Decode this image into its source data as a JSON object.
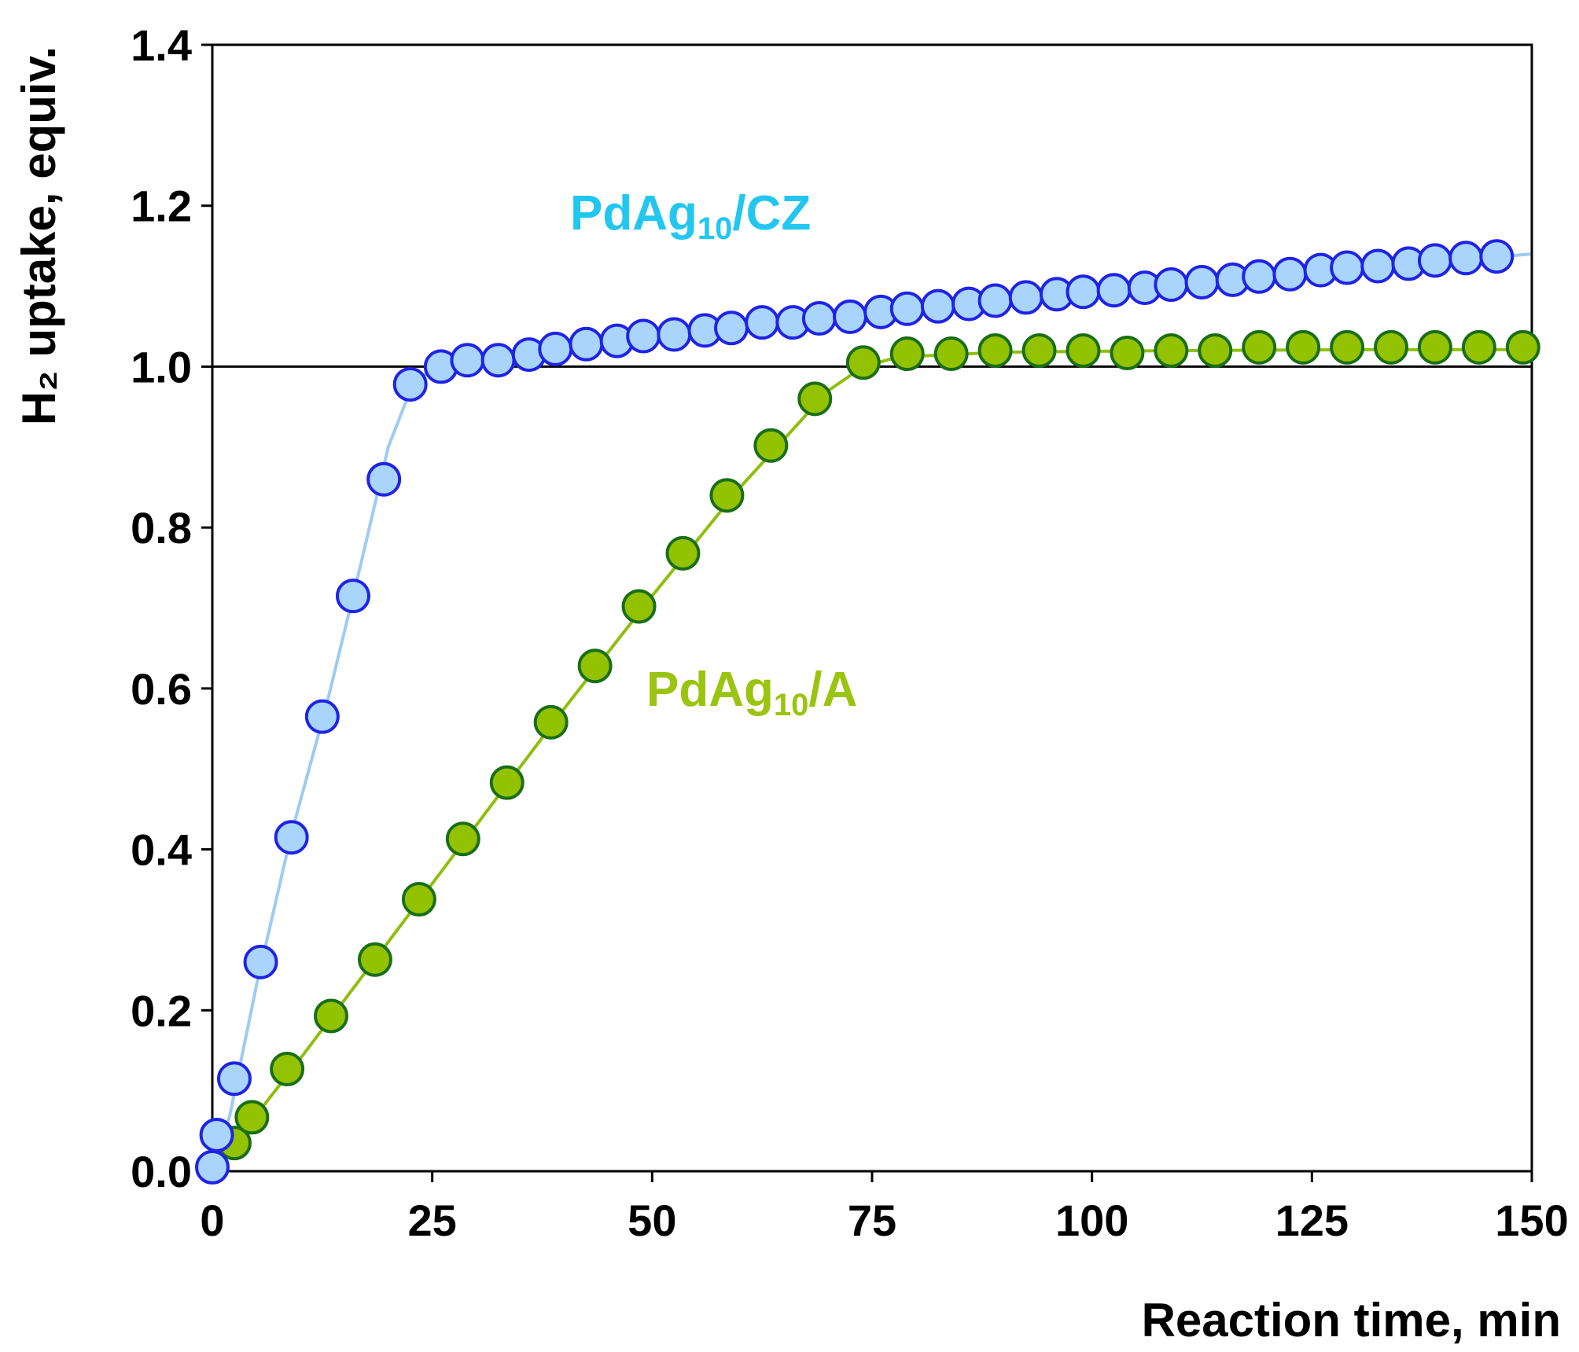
{
  "chart_data": {
    "type": "scatter",
    "title": "",
    "xlabel": "Reaction time, min",
    "ylabel": "H₂ uptake, equiv.",
    "xlim": [
      0,
      150
    ],
    "ylim": [
      0,
      1.4
    ],
    "xticks": [
      0,
      25,
      50,
      75,
      100,
      125,
      150
    ],
    "yticks": [
      0.0,
      0.2,
      0.4,
      0.6,
      0.8,
      1.0,
      1.2,
      1.4
    ],
    "xtick_labels": [
      "0",
      "25",
      "50",
      "75",
      "100",
      "125",
      "150"
    ],
    "ytick_labels": [
      "0.0",
      "0.2",
      "0.4",
      "0.6",
      "0.8",
      "1.0",
      "1.2",
      "1.4"
    ],
    "reference_line": {
      "y": 1.0,
      "color": "#000000"
    },
    "grid": false,
    "series": [
      {
        "name": "PdAg10/CZ",
        "label_main": "PdAg",
        "label_sub": "10",
        "label_tail": "/CZ",
        "label_color": "#22c7f0",
        "marker_fill": "#a9d4fb",
        "marker_edge": "#1f23e6",
        "line_color": "#9ecbf2",
        "x": [
          0,
          0.5,
          2.5,
          5.5,
          9.0,
          12.5,
          16,
          19.5,
          22.5,
          26,
          29,
          32.5,
          36,
          39,
          42.5,
          46,
          49,
          52.5,
          56,
          59,
          62.5,
          66,
          69,
          72.5,
          76,
          79,
          82.5,
          86,
          89,
          92.5,
          96,
          99,
          102.5,
          106,
          109,
          112.5,
          116,
          119,
          122.5,
          126,
          129,
          132.5,
          136,
          139,
          142.5,
          146
        ],
        "y": [
          0.005,
          0.045,
          0.115,
          0.26,
          0.415,
          0.565,
          0.715,
          0.86,
          0.978,
          1.0,
          1.008,
          1.008,
          1.015,
          1.022,
          1.028,
          1.032,
          1.038,
          1.04,
          1.045,
          1.048,
          1.055,
          1.055,
          1.06,
          1.062,
          1.068,
          1.072,
          1.075,
          1.078,
          1.082,
          1.086,
          1.09,
          1.093,
          1.095,
          1.098,
          1.102,
          1.105,
          1.108,
          1.112,
          1.115,
          1.12,
          1.123,
          1.125,
          1.128,
          1.132,
          1.135,
          1.137
        ],
        "fit_x": [
          0,
          2,
          5,
          9,
          13,
          17,
          20,
          22.5,
          25,
          35,
          60,
          90,
          120,
          150
        ],
        "fit_y": [
          0.0,
          0.07,
          0.23,
          0.42,
          0.58,
          0.76,
          0.9,
          0.97,
          1.0,
          1.015,
          1.047,
          1.084,
          1.113,
          1.14
        ]
      },
      {
        "name": "PdAg10/A",
        "label_main": "PdAg",
        "label_sub": "10",
        "label_tail": "/A",
        "label_color": "#9ac40f",
        "marker_fill": "#93c300",
        "marker_edge": "#1a6e17",
        "line_color": "#8fbf0f",
        "x": [
          2.5,
          4.5,
          8.5,
          13.5,
          18.5,
          23.5,
          28.5,
          33.5,
          38.5,
          43.5,
          48.5,
          53.5,
          58.5,
          63.5,
          68.5,
          74,
          79,
          84,
          89,
          94,
          99,
          104,
          109,
          114,
          119,
          124,
          129,
          134,
          139,
          144,
          149
        ],
        "y": [
          0.035,
          0.067,
          0.127,
          0.193,
          0.263,
          0.338,
          0.413,
          0.483,
          0.558,
          0.628,
          0.702,
          0.768,
          0.84,
          0.902,
          0.96,
          1.005,
          1.016,
          1.016,
          1.02,
          1.02,
          1.02,
          1.017,
          1.02,
          1.02,
          1.024,
          1.024,
          1.024,
          1.024,
          1.024,
          1.024,
          1.024
        ],
        "fit_x": [
          0,
          10,
          20,
          30,
          40,
          50,
          60,
          70,
          74,
          78,
          90,
          110,
          130,
          150
        ],
        "fit_y": [
          0.0,
          0.14,
          0.285,
          0.43,
          0.575,
          0.715,
          0.85,
          0.97,
          1.0,
          1.012,
          1.018,
          1.02,
          1.021,
          1.021
        ]
      }
    ]
  }
}
